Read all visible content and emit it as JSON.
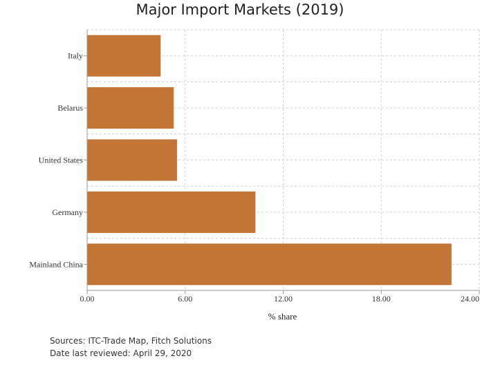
{
  "chart_data": {
    "type": "bar",
    "orientation": "horizontal",
    "title": "Major Import Markets (2019)",
    "xlabel": "% share",
    "ylabel": "",
    "categories": [
      "Italy",
      "Belarus",
      "United States",
      "Germany",
      "Mainland China"
    ],
    "values": [
      4.5,
      5.3,
      5.5,
      10.3,
      22.3
    ],
    "xlim": [
      0,
      24
    ],
    "x_ticks": [
      "0.00",
      "6.00",
      "12.00",
      "18.00",
      "24.00"
    ],
    "bar_color": "#c37535",
    "grid": true
  },
  "footer": {
    "source": "Sources: ITC-Trade Map, Fitch Solutions",
    "reviewed": "Date last reviewed: April 29, 2020"
  }
}
